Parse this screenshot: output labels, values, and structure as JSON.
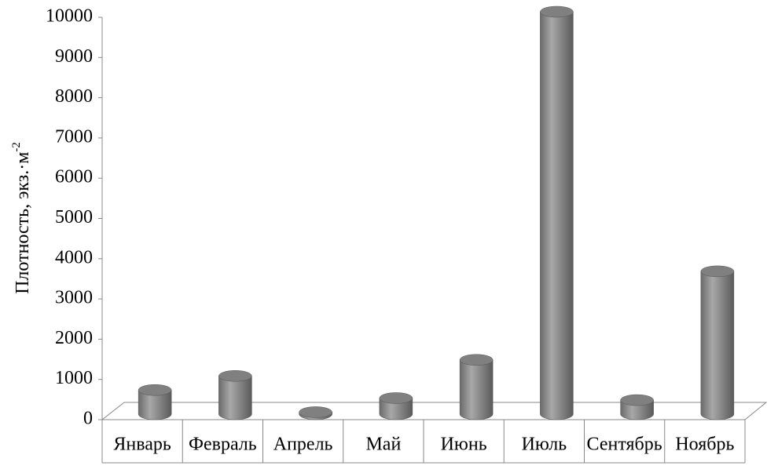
{
  "chart_data": {
    "type": "bar",
    "y_label": "Плотность, экз.·м",
    "y_label_sup": "-2",
    "categories": [
      "Январь",
      "Февраль",
      "Апрель",
      "Май",
      "Июнь",
      "Июль",
      "Сентябрь",
      "Ноябрь"
    ],
    "values": [
      600,
      950,
      50,
      400,
      1350,
      10000,
      350,
      3550
    ],
    "color": "#808080",
    "ylim": [
      0,
      10000
    ],
    "yticks": [
      0,
      1000,
      2000,
      3000,
      4000,
      5000,
      6000,
      7000,
      8000,
      9000,
      10000
    ]
  }
}
